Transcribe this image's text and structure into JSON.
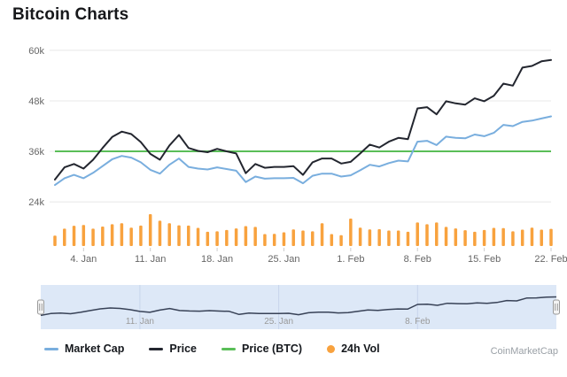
{
  "page": {
    "title": "Bitcoin Charts",
    "watermark": "CoinMarketCap"
  },
  "colors": {
    "market_cap": "#79aede",
    "price": "#23262f",
    "price_btc": "#5abe58",
    "volume": "#f8a23e",
    "grid": "#e8e8e8",
    "axis_text": "#666666",
    "tick_mark": "#cccccc",
    "navigator_fill": "#dde8f7",
    "navigator_line": "#384257",
    "navigator_gridline": "#c7d5ec",
    "navigator_label": "#999999",
    "handle_fill": "#f4f4f4",
    "handle_border": "#9a9a9a"
  },
  "legend": {
    "items": [
      {
        "label": "Market Cap",
        "swatch": "line",
        "color": "#79aede"
      },
      {
        "label": "Price",
        "swatch": "line",
        "color": "#23262f"
      },
      {
        "label": "Price (BTC)",
        "swatch": "line",
        "color": "#5abe58"
      },
      {
        "label": "24h Vol",
        "swatch": "dot",
        "color": "#f8a23e"
      }
    ]
  },
  "chart_data": {
    "type": "line",
    "title": "Bitcoin Charts",
    "y_unit": "thousands USD",
    "ylim": [
      13500,
      62500
    ],
    "grid": true,
    "legend_position": "bottom",
    "y_ticks": [
      {
        "label": "24k",
        "value": 24000
      },
      {
        "label": "36k",
        "value": 36000
      },
      {
        "label": "48k",
        "value": 48000
      },
      {
        "label": "60k",
        "value": 60000
      }
    ],
    "x_ticks": [
      {
        "label": "4. Jan",
        "index": 3
      },
      {
        "label": "11. Jan",
        "index": 10
      },
      {
        "label": "18. Jan",
        "index": 17
      },
      {
        "label": "25. Jan",
        "index": 24
      },
      {
        "label": "1. Feb",
        "index": 31
      },
      {
        "label": "8. Feb",
        "index": 38
      },
      {
        "label": "15. Feb",
        "index": 45
      },
      {
        "label": "22. Feb",
        "index": 52
      }
    ],
    "dates": [
      "1. Jan",
      "2. Jan",
      "3. Jan",
      "4. Jan",
      "5. Jan",
      "6. Jan",
      "7. Jan",
      "8. Jan",
      "9. Jan",
      "10. Jan",
      "11. Jan",
      "12. Jan",
      "13. Jan",
      "14. Jan",
      "15. Jan",
      "16. Jan",
      "17. Jan",
      "18. Jan",
      "19. Jan",
      "20. Jan",
      "21. Jan",
      "22. Jan",
      "23. Jan",
      "24. Jan",
      "25. Jan",
      "26. Jan",
      "27. Jan",
      "28. Jan",
      "29. Jan",
      "30. Jan",
      "31. Jan",
      "1. Feb",
      "2. Feb",
      "3. Feb",
      "4. Feb",
      "5. Feb",
      "6. Feb",
      "7. Feb",
      "8. Feb",
      "9. Feb",
      "10. Feb",
      "11. Feb",
      "12. Feb",
      "13. Feb",
      "14. Feb",
      "15. Feb",
      "16. Feb",
      "17. Feb",
      "18. Feb",
      "19. Feb",
      "20. Feb",
      "21. Feb",
      "22. Feb"
    ],
    "series": [
      {
        "name": "Market Cap",
        "type": "line",
        "color": "#79aede",
        "values_k": [
          28.0,
          29.6,
          30.4,
          29.6,
          30.9,
          32.5,
          34.1,
          34.9,
          34.5,
          33.4,
          31.6,
          30.7,
          32.8,
          34.3,
          32.3,
          31.9,
          31.7,
          32.2,
          31.8,
          31.4,
          28.7,
          30.0,
          29.5,
          29.6,
          29.6,
          29.7,
          28.4,
          30.2,
          30.7,
          30.7,
          30.0,
          30.3,
          31.5,
          32.8,
          32.4,
          33.2,
          33.8,
          33.6,
          38.3,
          38.5,
          37.5,
          39.5,
          39.2,
          39.1,
          40.0,
          39.6,
          40.4,
          42.3,
          42.0,
          43.0,
          43.3,
          43.8,
          44.3
        ]
      },
      {
        "name": "Price",
        "type": "line",
        "color": "#23262f",
        "values_k": [
          29.3,
          32.2,
          33.0,
          31.9,
          34.0,
          36.8,
          39.4,
          40.7,
          40.1,
          38.2,
          35.4,
          34.0,
          37.4,
          39.9,
          36.8,
          36.1,
          35.8,
          36.6,
          36.0,
          35.5,
          30.8,
          33.0,
          32.1,
          32.3,
          32.3,
          32.5,
          30.4,
          33.4,
          34.3,
          34.3,
          33.1,
          33.5,
          35.5,
          37.6,
          36.9,
          38.3,
          39.2,
          38.9,
          46.2,
          46.5,
          44.8,
          47.9,
          47.4,
          47.1,
          48.6,
          47.9,
          49.2,
          52.1,
          51.6,
          55.9,
          56.3,
          57.4,
          57.7
        ]
      },
      {
        "name": "Price (BTC)",
        "type": "line",
        "color": "#5abe58",
        "constant_k": 36
      },
      {
        "name": "24h Vol",
        "type": "column",
        "color": "#f8a23e",
        "axis": "hidden",
        "values_rel": [
          40,
          67,
          78,
          81,
          67,
          75,
          84,
          88,
          71,
          79,
          123,
          98,
          88,
          80,
          79,
          70,
          55,
          57,
          62,
          68,
          77,
          74,
          46,
          47,
          53,
          64,
          60,
          57,
          88,
          46,
          42,
          106,
          71,
          64,
          65,
          60,
          60,
          55,
          91,
          84,
          91,
          74,
          68,
          61,
          55,
          62,
          70,
          69,
          57,
          63,
          71,
          63,
          66
        ]
      }
    ],
    "navigator": {
      "range": "full",
      "tick_labels": [
        {
          "label": "11. Jan",
          "index": 10
        },
        {
          "label": "25. Jan",
          "index": 24
        },
        {
          "label": "8. Feb",
          "index": 38
        }
      ]
    }
  }
}
